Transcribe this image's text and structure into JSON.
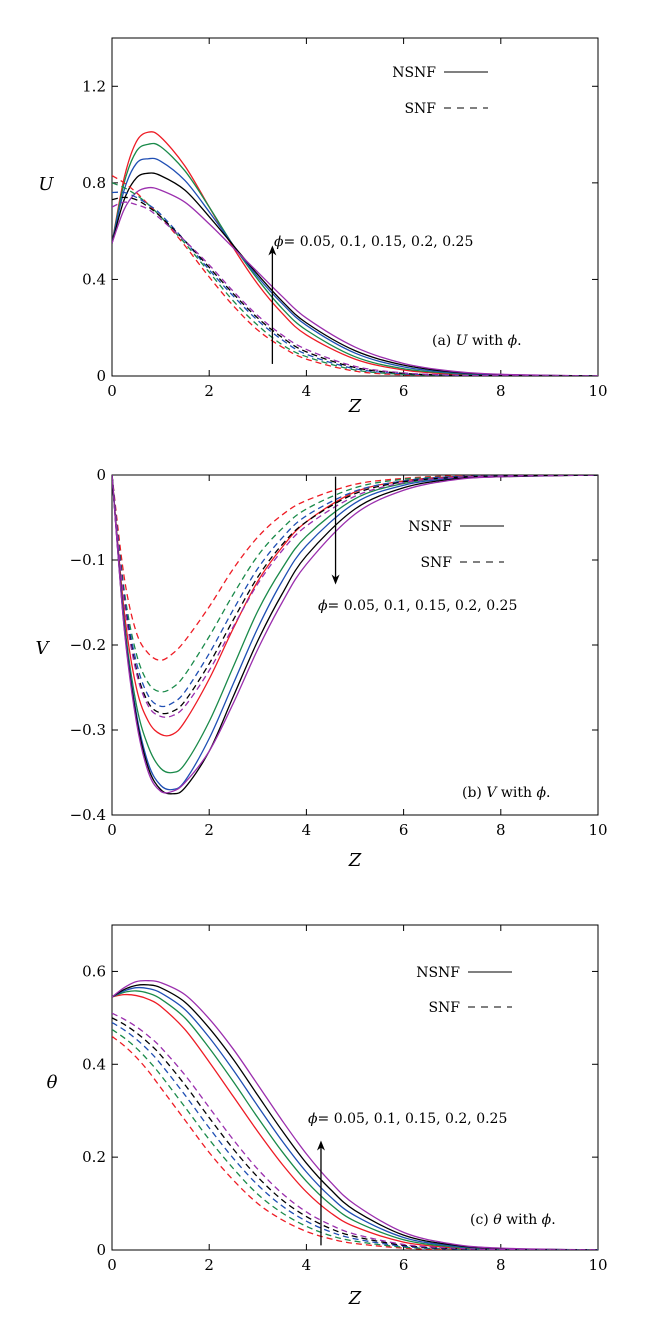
{
  "chart_data": [
    {
      "type": "line",
      "panel": "a",
      "ylabel": "U",
      "xlabel": "Z",
      "xlim": [
        0,
        10
      ],
      "ylim": [
        0,
        1.4
      ],
      "xticks": [
        "0",
        "2",
        "4",
        "6",
        "8",
        "10"
      ],
      "yticks": [
        "0",
        "0.4",
        "0.8",
        "1.2"
      ],
      "legend": [
        {
          "label": "NSNF",
          "style": "solid"
        },
        {
          "label": "SNF",
          "style": "dashed"
        }
      ],
      "legend_position": "top-right",
      "annotation": {
        "symbol": "ϕ",
        "text": "= 0.05, 0.1, 0.15, 0.2, 0.25",
        "arrow": "up",
        "arrow_x": 3.3,
        "arrow_from": 0.05,
        "arrow_to": 0.52
      },
      "caption": {
        "prefix": "(a) ",
        "var": "U",
        "mid": " with ",
        "sym": "ϕ",
        "suffix": "."
      },
      "x": [
        0,
        0.25,
        0.5,
        0.75,
        1,
        1.5,
        2,
        2.5,
        3,
        3.5,
        4,
        5,
        6,
        7,
        8,
        10
      ],
      "series": [
        {
          "phi": "0.05",
          "style": "solid",
          "color": "#ee1c25",
          "values": [
            0.55,
            0.82,
            0.97,
            1.01,
            0.99,
            0.87,
            0.7,
            0.53,
            0.38,
            0.26,
            0.17,
            0.07,
            0.025,
            0.008,
            0.002,
            0
          ]
        },
        {
          "phi": "0.1",
          "style": "solid",
          "color": "#1a8a4a",
          "values": [
            0.55,
            0.8,
            0.93,
            0.96,
            0.95,
            0.85,
            0.7,
            0.54,
            0.4,
            0.28,
            0.19,
            0.08,
            0.03,
            0.011,
            0.003,
            0
          ]
        },
        {
          "phi": "0.15",
          "style": "solid",
          "color": "#1f4fb4",
          "values": [
            0.55,
            0.77,
            0.88,
            0.9,
            0.89,
            0.81,
            0.68,
            0.54,
            0.41,
            0.3,
            0.21,
            0.095,
            0.038,
            0.014,
            0.005,
            0
          ]
        },
        {
          "phi": "0.2",
          "style": "solid",
          "color": "#000000",
          "values": [
            0.55,
            0.73,
            0.82,
            0.84,
            0.83,
            0.77,
            0.66,
            0.54,
            0.42,
            0.31,
            0.22,
            0.105,
            0.045,
            0.017,
            0.006,
            0
          ]
        },
        {
          "phi": "0.25",
          "style": "solid",
          "color": "#9b2fae",
          "values": [
            0.55,
            0.69,
            0.76,
            0.78,
            0.77,
            0.72,
            0.63,
            0.53,
            0.43,
            0.33,
            0.24,
            0.12,
            0.052,
            0.02,
            0.007,
            0
          ]
        },
        {
          "phi": "0.05",
          "style": "dashed",
          "color": "#ee1c25",
          "values": [
            0.83,
            0.8,
            0.76,
            0.71,
            0.66,
            0.54,
            0.41,
            0.29,
            0.19,
            0.12,
            0.07,
            0.02,
            0.005,
            0.001,
            0,
            0
          ]
        },
        {
          "phi": "0.1",
          "style": "dashed",
          "color": "#1a8a4a",
          "values": [
            0.8,
            0.78,
            0.75,
            0.71,
            0.66,
            0.55,
            0.43,
            0.31,
            0.21,
            0.13,
            0.08,
            0.025,
            0.007,
            0.002,
            0,
            0
          ]
        },
        {
          "phi": "0.15",
          "style": "dashed",
          "color": "#1f4fb4",
          "values": [
            0.76,
            0.76,
            0.74,
            0.71,
            0.67,
            0.56,
            0.44,
            0.33,
            0.23,
            0.15,
            0.09,
            0.03,
            0.009,
            0.002,
            0,
            0
          ]
        },
        {
          "phi": "0.2",
          "style": "dashed",
          "color": "#000000",
          "values": [
            0.73,
            0.74,
            0.73,
            0.7,
            0.66,
            0.56,
            0.45,
            0.34,
            0.24,
            0.16,
            0.1,
            0.035,
            0.011,
            0.003,
            0.001,
            0
          ]
        },
        {
          "phi": "0.25",
          "style": "dashed",
          "color": "#9b2fae",
          "values": [
            0.7,
            0.72,
            0.71,
            0.69,
            0.65,
            0.56,
            0.46,
            0.35,
            0.25,
            0.17,
            0.11,
            0.04,
            0.013,
            0.004,
            0.001,
            0
          ]
        }
      ]
    },
    {
      "type": "line",
      "panel": "b",
      "ylabel": "V",
      "xlabel": "Z",
      "xlim": [
        0,
        10
      ],
      "ylim": [
        -0.4,
        0
      ],
      "xticks": [
        "0",
        "2",
        "4",
        "6",
        "8",
        "10"
      ],
      "yticks": [
        "0",
        "−0.1",
        "−0.2",
        "−0.3",
        "−0.4"
      ],
      "legend": [
        {
          "label": "NSNF",
          "style": "solid"
        },
        {
          "label": "SNF",
          "style": "dashed"
        }
      ],
      "legend_position": "top-right",
      "annotation": {
        "symbol": "ϕ",
        "text": "= 0.05, 0.1, 0.15, 0.2, 0.25",
        "arrow": "down",
        "arrow_x": 4.6,
        "arrow_from": -0.002,
        "arrow_to": -0.123
      },
      "caption": {
        "prefix": "(b) ",
        "var": "V",
        "mid": " with ",
        "sym": "ϕ",
        "suffix": "."
      },
      "x": [
        0,
        0.25,
        0.5,
        0.75,
        1,
        1.25,
        1.5,
        2,
        2.5,
        3,
        3.5,
        4,
        5,
        6,
        7,
        8,
        10
      ],
      "series": [
        {
          "phi": "0.05",
          "style": "solid",
          "color": "#ee1c25",
          "values": [
            0,
            -0.16,
            -0.25,
            -0.29,
            -0.305,
            -0.305,
            -0.29,
            -0.24,
            -0.18,
            -0.125,
            -0.085,
            -0.055,
            -0.02,
            -0.007,
            -0.002,
            -0.001,
            0
          ]
        },
        {
          "phi": "0.1",
          "style": "solid",
          "color": "#1a8a4a",
          "values": [
            0,
            -0.17,
            -0.27,
            -0.32,
            -0.345,
            -0.35,
            -0.34,
            -0.29,
            -0.225,
            -0.16,
            -0.11,
            -0.072,
            -0.028,
            -0.01,
            -0.003,
            -0.001,
            0
          ]
        },
        {
          "phi": "0.15",
          "style": "solid",
          "color": "#1f4fb4",
          "values": [
            0,
            -0.175,
            -0.28,
            -0.34,
            -0.365,
            -0.37,
            -0.36,
            -0.31,
            -0.245,
            -0.18,
            -0.125,
            -0.083,
            -0.033,
            -0.012,
            -0.004,
            -0.001,
            0
          ]
        },
        {
          "phi": "0.2",
          "style": "solid",
          "color": "#000000",
          "values": [
            0,
            -0.178,
            -0.285,
            -0.345,
            -0.37,
            -0.375,
            -0.368,
            -0.325,
            -0.26,
            -0.195,
            -0.14,
            -0.095,
            -0.04,
            -0.015,
            -0.005,
            -0.002,
            0
          ]
        },
        {
          "phi": "0.25",
          "style": "solid",
          "color": "#9b2fae",
          "values": [
            0,
            -0.18,
            -0.29,
            -0.35,
            -0.372,
            -0.372,
            -0.362,
            -0.325,
            -0.268,
            -0.205,
            -0.15,
            -0.105,
            -0.046,
            -0.018,
            -0.006,
            -0.002,
            0
          ]
        },
        {
          "phi": "0.05",
          "style": "dashed",
          "color": "#ee1c25",
          "values": [
            0,
            -0.12,
            -0.185,
            -0.21,
            -0.218,
            -0.21,
            -0.195,
            -0.155,
            -0.11,
            -0.073,
            -0.047,
            -0.03,
            -0.011,
            -0.004,
            -0.001,
            0,
            0
          ]
        },
        {
          "phi": "0.1",
          "style": "dashed",
          "color": "#1a8a4a",
          "values": [
            0,
            -0.135,
            -0.21,
            -0.245,
            -0.255,
            -0.25,
            -0.235,
            -0.19,
            -0.14,
            -0.095,
            -0.063,
            -0.04,
            -0.015,
            -0.005,
            -0.002,
            0,
            0
          ]
        },
        {
          "phi": "0.15",
          "style": "dashed",
          "color": "#1f4fb4",
          "values": [
            0,
            -0.14,
            -0.22,
            -0.26,
            -0.272,
            -0.268,
            -0.255,
            -0.21,
            -0.158,
            -0.11,
            -0.074,
            -0.048,
            -0.019,
            -0.007,
            -0.002,
            -0.001,
            0
          ]
        },
        {
          "phi": "0.2",
          "style": "dashed",
          "color": "#000000",
          "values": [
            0,
            -0.145,
            -0.228,
            -0.268,
            -0.28,
            -0.278,
            -0.266,
            -0.222,
            -0.17,
            -0.12,
            -0.082,
            -0.055,
            -0.022,
            -0.008,
            -0.003,
            -0.001,
            0
          ]
        },
        {
          "phi": "0.25",
          "style": "dashed",
          "color": "#9b2fae",
          "values": [
            0,
            -0.148,
            -0.232,
            -0.272,
            -0.284,
            -0.283,
            -0.272,
            -0.23,
            -0.178,
            -0.128,
            -0.089,
            -0.06,
            -0.025,
            -0.009,
            -0.003,
            -0.001,
            0
          ]
        }
      ]
    },
    {
      "type": "line",
      "panel": "c",
      "ylabel": "θ",
      "xlabel": "Z",
      "xlim": [
        0,
        10
      ],
      "ylim": [
        0,
        0.7
      ],
      "xticks": [
        "0",
        "2",
        "4",
        "6",
        "8",
        "10"
      ],
      "yticks": [
        "0",
        "0.2",
        "0.4",
        "0.6"
      ],
      "legend": [
        {
          "label": "NSNF",
          "style": "solid"
        },
        {
          "label": "SNF",
          "style": "dashed"
        }
      ],
      "legend_position": "top-right",
      "annotation": {
        "symbol": "ϕ",
        "text": "= 0.05, 0.1, 0.15, 0.2, 0.25",
        "arrow": "up",
        "arrow_x": 4.3,
        "arrow_from": 0.01,
        "arrow_to": 0.225
      },
      "caption": {
        "prefix": "(c) ",
        "var": "θ",
        "mid": " with ",
        "sym": "ϕ",
        "suffix": "."
      },
      "x": [
        0,
        0.25,
        0.5,
        0.75,
        1,
        1.5,
        2,
        2.5,
        3,
        3.5,
        4,
        4.5,
        5,
        6,
        7,
        8,
        10
      ],
      "series": [
        {
          "phi": "0.05",
          "style": "solid",
          "color": "#ee1c25",
          "values": [
            0.545,
            0.55,
            0.548,
            0.54,
            0.525,
            0.475,
            0.405,
            0.33,
            0.255,
            0.185,
            0.125,
            0.08,
            0.05,
            0.017,
            0.005,
            0.001,
            0
          ]
        },
        {
          "phi": "0.1",
          "style": "solid",
          "color": "#1a8a4a",
          "values": [
            0.545,
            0.555,
            0.558,
            0.553,
            0.541,
            0.5,
            0.435,
            0.362,
            0.285,
            0.212,
            0.148,
            0.098,
            0.062,
            0.022,
            0.007,
            0.002,
            0
          ]
        },
        {
          "phi": "0.15",
          "style": "solid",
          "color": "#1f4fb4",
          "values": [
            0.545,
            0.558,
            0.565,
            0.563,
            0.554,
            0.518,
            0.458,
            0.387,
            0.31,
            0.235,
            0.168,
            0.114,
            0.074,
            0.027,
            0.009,
            0.003,
            0
          ]
        },
        {
          "phi": "0.2",
          "style": "solid",
          "color": "#000000",
          "values": [
            0.545,
            0.561,
            0.57,
            0.571,
            0.565,
            0.534,
            0.478,
            0.41,
            0.333,
            0.257,
            0.187,
            0.13,
            0.085,
            0.032,
            0.011,
            0.003,
            0
          ]
        },
        {
          "phi": "0.25",
          "style": "solid",
          "color": "#9b2fae",
          "values": [
            0.545,
            0.565,
            0.578,
            0.58,
            0.576,
            0.55,
            0.498,
            0.432,
            0.356,
            0.279,
            0.207,
            0.146,
            0.098,
            0.038,
            0.013,
            0.004,
            0
          ]
        },
        {
          "phi": "0.05",
          "style": "dashed",
          "color": "#ee1c25",
          "values": [
            0.46,
            0.44,
            0.415,
            0.385,
            0.35,
            0.28,
            0.21,
            0.15,
            0.1,
            0.065,
            0.04,
            0.024,
            0.014,
            0.004,
            0.001,
            0,
            0
          ]
        },
        {
          "phi": "0.1",
          "style": "dashed",
          "color": "#1a8a4a",
          "values": [
            0.475,
            0.457,
            0.435,
            0.408,
            0.377,
            0.308,
            0.238,
            0.175,
            0.12,
            0.08,
            0.051,
            0.031,
            0.019,
            0.006,
            0.002,
            0,
            0
          ]
        },
        {
          "phi": "0.15",
          "style": "dashed",
          "color": "#1f4fb4",
          "values": [
            0.49,
            0.474,
            0.454,
            0.43,
            0.401,
            0.334,
            0.263,
            0.197,
            0.14,
            0.095,
            0.062,
            0.039,
            0.024,
            0.008,
            0.002,
            0,
            0
          ]
        },
        {
          "phi": "0.2",
          "style": "dashed",
          "color": "#000000",
          "values": [
            0.5,
            0.486,
            0.468,
            0.446,
            0.42,
            0.356,
            0.285,
            0.217,
            0.157,
            0.108,
            0.072,
            0.046,
            0.029,
            0.01,
            0.003,
            0.001,
            0
          ]
        },
        {
          "phi": "0.25",
          "style": "dashed",
          "color": "#9b2fae",
          "values": [
            0.51,
            0.497,
            0.481,
            0.461,
            0.437,
            0.377,
            0.307,
            0.237,
            0.174,
            0.122,
            0.082,
            0.054,
            0.034,
            0.012,
            0.004,
            0.001,
            0
          ]
        }
      ]
    }
  ]
}
